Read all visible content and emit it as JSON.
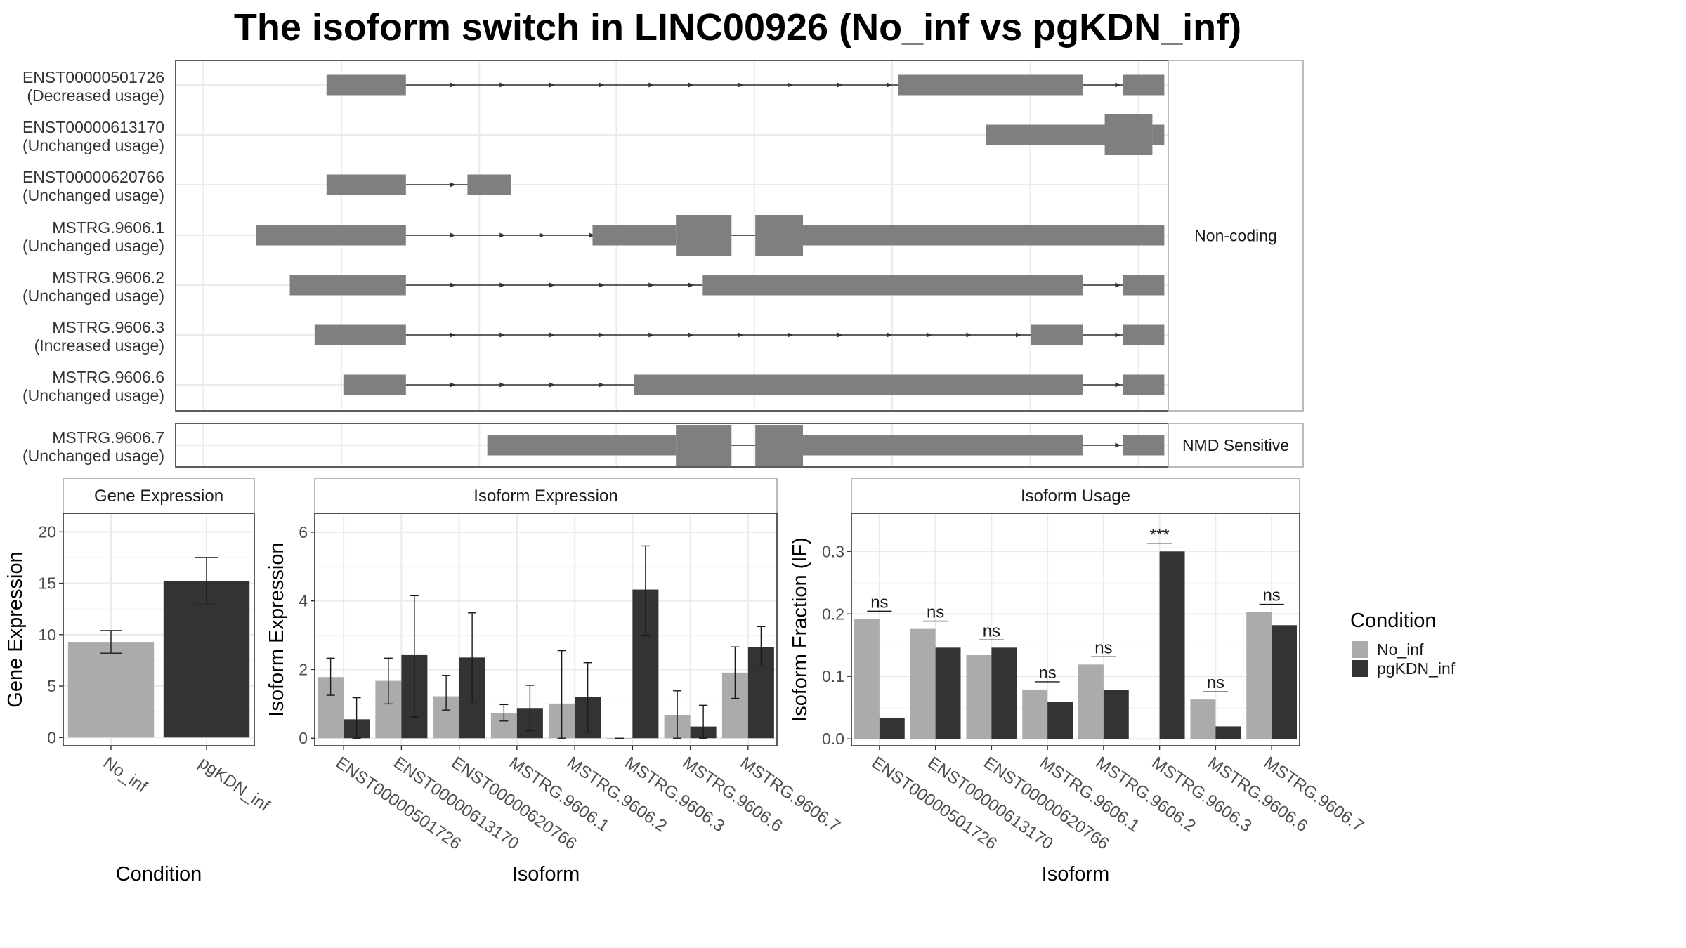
{
  "title": "The isoform switch in LINC00926 (No_inf vs pgKDN_inf)",
  "colors": {
    "No_inf": "#ababab",
    "pgKDN_inf": "#333333",
    "exon": "#7f7f7f",
    "grid": "#ebebeb",
    "frame": "#333333"
  },
  "structure": {
    "strip_noncoding": "Non-coding",
    "strip_nmd": "NMD Sensitive",
    "transcripts": [
      {
        "id": "ENST00000501726",
        "usage": "(Decreased usage)",
        "group": "nc",
        "exons": [
          [
            0.152,
            0.232,
            "s"
          ],
          [
            0.728,
            0.914,
            "s"
          ],
          [
            0.954,
            0.996,
            "s"
          ]
        ],
        "arrows": [
          0.28,
          0.33,
          0.38,
          0.43,
          0.48,
          0.52,
          0.57,
          0.62,
          0.67,
          0.72,
          0.85,
          0.95
        ]
      },
      {
        "id": "ENST00000613170",
        "usage": "(Unchanged usage)",
        "group": "nc",
        "exons": [
          [
            0.816,
            0.954,
            "s"
          ],
          [
            0.936,
            0.984,
            "t"
          ],
          [
            0.984,
            0.996,
            "s"
          ]
        ],
        "arrows": []
      },
      {
        "id": "ENST00000620766",
        "usage": "(Unchanged usage)",
        "group": "nc",
        "exons": [
          [
            0.152,
            0.232,
            "s"
          ],
          [
            0.294,
            0.338,
            "s"
          ]
        ],
        "arrows": [
          0.28
        ]
      },
      {
        "id": "MSTRG.9606.1",
        "usage": "(Unchanged usage)",
        "group": "nc",
        "exons": [
          [
            0.081,
            0.232,
            "s"
          ],
          [
            0.42,
            0.504,
            "s"
          ],
          [
            0.504,
            0.56,
            "t"
          ],
          [
            0.584,
            0.632,
            "t"
          ],
          [
            0.632,
            0.996,
            "s"
          ]
        ],
        "arrows": [
          0.28,
          0.33,
          0.37,
          0.42
        ]
      },
      {
        "id": "MSTRG.9606.2",
        "usage": "(Unchanged usage)",
        "group": "nc",
        "exons": [
          [
            0.115,
            0.232,
            "s"
          ],
          [
            0.531,
            0.914,
            "s"
          ],
          [
            0.954,
            0.996,
            "s"
          ]
        ],
        "arrows": [
          0.28,
          0.33,
          0.38,
          0.43,
          0.48,
          0.52,
          0.95
        ]
      },
      {
        "id": "MSTRG.9606.3",
        "usage": "(Increased usage)",
        "group": "nc",
        "exons": [
          [
            0.14,
            0.232,
            "s"
          ],
          [
            0.862,
            0.914,
            "s"
          ],
          [
            0.954,
            0.996,
            "s"
          ]
        ],
        "arrows": [
          0.28,
          0.33,
          0.38,
          0.43,
          0.48,
          0.52,
          0.57,
          0.62,
          0.67,
          0.72,
          0.76,
          0.8,
          0.85,
          0.95
        ]
      },
      {
        "id": "MSTRG.9606.6",
        "usage": "(Unchanged usage)",
        "group": "nc",
        "exons": [
          [
            0.169,
            0.232,
            "s"
          ],
          [
            0.462,
            0.914,
            "s"
          ],
          [
            0.954,
            0.996,
            "s"
          ]
        ],
        "arrows": [
          0.28,
          0.33,
          0.38,
          0.43,
          0.95
        ]
      },
      {
        "id": "MSTRG.9606.7",
        "usage": "(Unchanged usage)",
        "group": "nmd",
        "exons": [
          [
            0.314,
            0.504,
            "s"
          ],
          [
            0.504,
            0.56,
            "t"
          ],
          [
            0.584,
            0.632,
            "t"
          ],
          [
            0.632,
            0.914,
            "s"
          ],
          [
            0.954,
            0.996,
            "s"
          ]
        ],
        "arrows": [
          0.95
        ]
      }
    ]
  },
  "chart_data": [
    {
      "type": "bar",
      "title": "Gene Expression",
      "xlabel": "Condition",
      "ylabel": "Gene Expression",
      "categories": [
        "No_inf",
        "pgKDN_inf"
      ],
      "values": [
        9.3,
        15.2
      ],
      "errors": [
        [
          8.2,
          10.4
        ],
        [
          12.9,
          17.5
        ]
      ],
      "ylim": [
        -0.8,
        21.8
      ],
      "yticks": [
        0,
        5,
        10,
        15,
        20
      ],
      "grid": true
    },
    {
      "type": "bar",
      "title": "Isoform Expression",
      "xlabel": "Isoform",
      "ylabel": "Isoform Expression",
      "categories": [
        "ENST00000501726",
        "ENST00000613170",
        "ENST00000620766",
        "MSTRG.9606.1",
        "MSTRG.9606.2",
        "MSTRG.9606.3",
        "MSTRG.9606.6",
        "MSTRG.9606.7"
      ],
      "series": [
        {
          "name": "No_inf",
          "values": [
            1.78,
            1.67,
            1.22,
            0.74,
            1.01,
            0.0,
            0.68,
            1.91
          ],
          "errors": [
            [
              1.25,
              2.33
            ],
            [
              1.0,
              2.33
            ],
            [
              0.82,
              1.83
            ],
            [
              0.5,
              0.98
            ],
            [
              0.0,
              2.55
            ],
            [
              0.0,
              0.0
            ],
            [
              0.0,
              1.38
            ],
            [
              1.16,
              2.66
            ]
          ]
        },
        {
          "name": "pgKDN_inf",
          "values": [
            0.55,
            2.42,
            2.35,
            0.88,
            1.2,
            4.33,
            0.34,
            2.65
          ],
          "errors": [
            [
              0.0,
              1.18
            ],
            [
              0.62,
              4.15
            ],
            [
              1.05,
              3.65
            ],
            [
              0.22,
              1.54
            ],
            [
              0.18,
              2.2
            ],
            [
              3.0,
              5.6
            ],
            [
              0.0,
              0.96
            ],
            [
              2.1,
              3.25
            ]
          ]
        }
      ],
      "ylim": [
        -0.22,
        6.55
      ],
      "yticks": [
        0,
        2,
        4,
        6
      ],
      "grid": true
    },
    {
      "type": "bar",
      "title": "Isoform Usage",
      "xlabel": "Isoform",
      "ylabel": "Isoform Fraction (IF)",
      "categories": [
        "ENST00000501726",
        "ENST00000613170",
        "ENST00000620766",
        "MSTRG.9606.1",
        "MSTRG.9606.2",
        "MSTRG.9606.3",
        "MSTRG.9606.6",
        "MSTRG.9606.7"
      ],
      "series": [
        {
          "name": "No_inf",
          "values": [
            0.192,
            0.176,
            0.134,
            0.079,
            0.119,
            0.0,
            0.063,
            0.203
          ]
        },
        {
          "name": "pgKDN_inf",
          "values": [
            0.034,
            0.146,
            0.146,
            0.059,
            0.078,
            0.3,
            0.02,
            0.182
          ]
        }
      ],
      "significance": [
        "ns",
        "ns",
        "ns",
        "ns",
        "ns",
        "***",
        "ns",
        "ns"
      ],
      "ylim": [
        -0.011,
        0.361
      ],
      "yticks": [
        0.0,
        0.1,
        0.2,
        0.3
      ],
      "ytick_labels": [
        "0.0",
        "0.1",
        "0.2",
        "0.3"
      ],
      "grid": true
    }
  ],
  "legend": {
    "title": "Condition",
    "placement": "right",
    "items": [
      {
        "label": "No_inf",
        "color": "#ababab"
      },
      {
        "label": "pgKDN_inf",
        "color": "#333333"
      }
    ]
  }
}
